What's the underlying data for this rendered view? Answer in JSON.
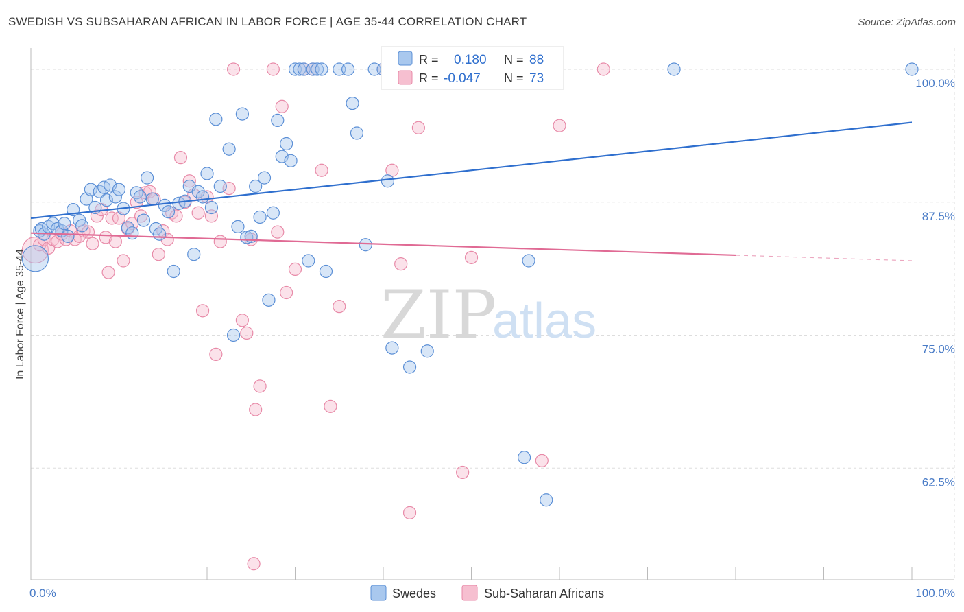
{
  "title": "SWEDISH VS SUBSAHARAN AFRICAN IN LABOR FORCE | AGE 35-44 CORRELATION CHART",
  "source": "Source: ZipAtlas.com",
  "watermark": {
    "zip": "ZIP",
    "atlas": "atlas"
  },
  "colors": {
    "swedes_fill": "#a9c8ee",
    "swedes_stroke": "#5b8fd6",
    "swedes_line": "#2f6fce",
    "african_fill": "#f6bfd0",
    "african_stroke": "#e88aa8",
    "african_line": "#e06a94",
    "grid": "#dddddd",
    "tick_text": "#4a7cc7"
  },
  "legend": {
    "rows": [
      {
        "r_label": "R =",
        "r_value": "0.180",
        "n_label": "N =",
        "n_value": "88"
      },
      {
        "r_label": "R =",
        "r_value": "-0.047",
        "n_label": "N =",
        "n_value": "73"
      }
    ]
  },
  "chart_data": {
    "type": "scatter",
    "title": "SWEDISH VS SUBSAHARAN AFRICAN IN LABOR FORCE | AGE 35-44 CORRELATION CHART",
    "xlabel": "",
    "ylabel": "In Labor Force | Age 35-44",
    "xlim": [
      0,
      100
    ],
    "ylim": [
      52,
      102
    ],
    "x_tick_labels": [
      "0.0%",
      "100.0%"
    ],
    "y_ticks": [
      62.5,
      75.0,
      87.5,
      100.0
    ],
    "y_tick_labels": [
      "62.5%",
      "75.0%",
      "87.5%",
      "100.0%"
    ],
    "grid": true,
    "legend_position": "top-center",
    "series": [
      {
        "name": "Swedes",
        "trend": {
          "x": [
            0,
            100
          ],
          "y": [
            86.0,
            95.0
          ],
          "dashed_from": null
        },
        "points": [
          [
            0.5,
            82.2
          ],
          [
            1.0,
            84.8
          ],
          [
            1.2,
            85.0
          ],
          [
            1.5,
            84.5
          ],
          [
            2.0,
            85.2
          ],
          [
            2.5,
            85.5
          ],
          [
            3.0,
            85.0
          ],
          [
            3.5,
            84.8
          ],
          [
            3.8,
            85.5
          ],
          [
            4.2,
            84.3
          ],
          [
            4.8,
            86.8
          ],
          [
            5.5,
            85.8
          ],
          [
            5.8,
            85.3
          ],
          [
            6.3,
            87.8
          ],
          [
            6.8,
            88.7
          ],
          [
            7.3,
            87.0
          ],
          [
            7.8,
            88.5
          ],
          [
            8.3,
            88.9
          ],
          [
            8.6,
            87.7
          ],
          [
            9.0,
            89.1
          ],
          [
            9.6,
            88.0
          ],
          [
            10.0,
            88.7
          ],
          [
            10.5,
            86.9
          ],
          [
            11.0,
            85.1
          ],
          [
            11.5,
            84.6
          ],
          [
            12.0,
            88.4
          ],
          [
            12.4,
            88.0
          ],
          [
            12.8,
            85.8
          ],
          [
            13.2,
            89.8
          ],
          [
            13.8,
            87.8
          ],
          [
            14.2,
            85.0
          ],
          [
            14.6,
            84.5
          ],
          [
            15.2,
            87.2
          ],
          [
            15.6,
            86.6
          ],
          [
            16.2,
            81.0
          ],
          [
            16.8,
            87.4
          ],
          [
            17.5,
            87.6
          ],
          [
            18.0,
            89.0
          ],
          [
            18.5,
            82.6
          ],
          [
            19.0,
            88.5
          ],
          [
            19.5,
            88.0
          ],
          [
            20.0,
            90.2
          ],
          [
            20.5,
            87.0
          ],
          [
            21.0,
            95.3
          ],
          [
            21.5,
            89.0
          ],
          [
            22.5,
            92.5
          ],
          [
            23.0,
            75.0
          ],
          [
            23.5,
            85.2
          ],
          [
            24.0,
            95.8
          ],
          [
            24.5,
            84.2
          ],
          [
            25.0,
            84.3
          ],
          [
            25.5,
            89.0
          ],
          [
            26.0,
            86.1
          ],
          [
            26.5,
            89.8
          ],
          [
            27.0,
            78.3
          ],
          [
            27.5,
            86.5
          ],
          [
            28.0,
            95.2
          ],
          [
            28.5,
            91.8
          ],
          [
            29.0,
            93.0
          ],
          [
            29.5,
            91.4
          ],
          [
            30.0,
            100.0
          ],
          [
            30.5,
            100.0
          ],
          [
            31.0,
            100.0
          ],
          [
            31.5,
            82.0
          ],
          [
            32.0,
            100.0
          ],
          [
            32.5,
            100.0
          ],
          [
            33.0,
            100.0
          ],
          [
            33.5,
            81.0
          ],
          [
            35.0,
            100.0
          ],
          [
            36.0,
            100.0
          ],
          [
            36.5,
            96.8
          ],
          [
            37.0,
            94.0
          ],
          [
            38.0,
            83.5
          ],
          [
            39.0,
            100.0
          ],
          [
            40.0,
            100.0
          ],
          [
            40.5,
            89.5
          ],
          [
            41.0,
            73.8
          ],
          [
            42.0,
            100.0
          ],
          [
            43.0,
            72.0
          ],
          [
            45.0,
            73.5
          ],
          [
            48.0,
            100.0
          ],
          [
            52.0,
            100.0
          ],
          [
            55.0,
            100.0
          ],
          [
            56.0,
            63.5
          ],
          [
            56.5,
            82.0
          ],
          [
            58.5,
            59.5
          ],
          [
            73.0,
            100.0
          ],
          [
            100.0,
            100.0
          ]
        ]
      },
      {
        "name": "Sub-Saharan Africans",
        "trend": {
          "x": [
            0,
            100
          ],
          "y": [
            84.6,
            82.0
          ],
          "dashed_from": 80
        },
        "points": [
          [
            0.5,
            83.0
          ],
          [
            1.0,
            83.5
          ],
          [
            1.5,
            84.0
          ],
          [
            2.0,
            83.2
          ],
          [
            2.5,
            84.0
          ],
          [
            3.0,
            83.8
          ],
          [
            3.5,
            84.5
          ],
          [
            4.0,
            84.0
          ],
          [
            4.5,
            84.8
          ],
          [
            5.0,
            84.0
          ],
          [
            5.5,
            84.3
          ],
          [
            6.0,
            84.8
          ],
          [
            6.5,
            84.7
          ],
          [
            7.0,
            83.6
          ],
          [
            7.5,
            86.2
          ],
          [
            8.0,
            86.8
          ],
          [
            8.5,
            84.2
          ],
          [
            8.8,
            80.9
          ],
          [
            9.2,
            86.0
          ],
          [
            9.6,
            83.8
          ],
          [
            10.0,
            86.0
          ],
          [
            10.5,
            82.0
          ],
          [
            11.0,
            85.0
          ],
          [
            11.5,
            85.5
          ],
          [
            12.0,
            87.5
          ],
          [
            12.5,
            86.2
          ],
          [
            13.0,
            88.4
          ],
          [
            13.5,
            88.5
          ],
          [
            14.0,
            87.8
          ],
          [
            14.5,
            82.6
          ],
          [
            15.0,
            84.8
          ],
          [
            15.5,
            84.0
          ],
          [
            16.0,
            86.5
          ],
          [
            16.5,
            86.2
          ],
          [
            17.0,
            91.7
          ],
          [
            17.5,
            87.5
          ],
          [
            18.0,
            89.5
          ],
          [
            18.5,
            88.2
          ],
          [
            19.0,
            86.5
          ],
          [
            19.5,
            77.3
          ],
          [
            20.0,
            88.0
          ],
          [
            20.5,
            86.2
          ],
          [
            21.0,
            73.2
          ],
          [
            21.5,
            83.8
          ],
          [
            22.5,
            88.8
          ],
          [
            23.0,
            100.0
          ],
          [
            24.0,
            76.4
          ],
          [
            24.5,
            75.2
          ],
          [
            25.0,
            84.0
          ],
          [
            25.5,
            68.0
          ],
          [
            26.0,
            70.2
          ],
          [
            27.5,
            100.0
          ],
          [
            28.0,
            84.7
          ],
          [
            28.5,
            96.5
          ],
          [
            29.0,
            79.0
          ],
          [
            30.0,
            81.2
          ],
          [
            31.0,
            100.0
          ],
          [
            32.0,
            100.0
          ],
          [
            33.0,
            90.5
          ],
          [
            34.0,
            68.3
          ],
          [
            35.0,
            77.7
          ],
          [
            40.0,
            100.0
          ],
          [
            41.0,
            90.5
          ],
          [
            42.0,
            81.7
          ],
          [
            43.0,
            58.3
          ],
          [
            44.0,
            94.5
          ],
          [
            47.0,
            100.0
          ],
          [
            49.0,
            62.1
          ],
          [
            50.0,
            82.3
          ],
          [
            58.0,
            63.2
          ],
          [
            60.0,
            94.7
          ],
          [
            65.0,
            100.0
          ],
          [
            25.3,
            53.5
          ]
        ]
      }
    ]
  },
  "bottom_legend": {
    "items": [
      {
        "label": "Swedes"
      },
      {
        "label": "Sub-Saharan Africans"
      }
    ]
  }
}
